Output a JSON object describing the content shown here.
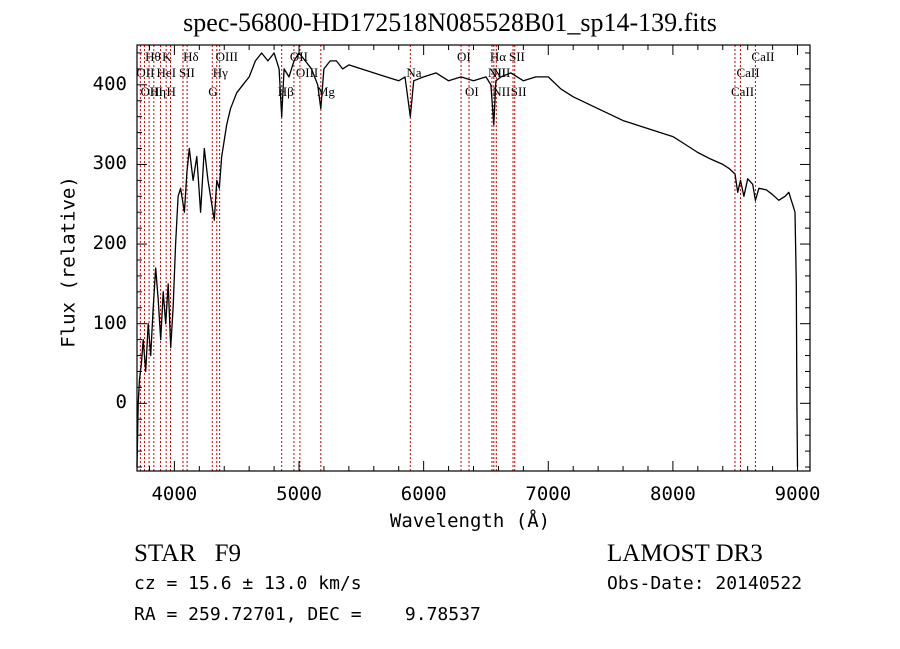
{
  "title": "spec-56800-HD172518N085528B01_sp14-139.fits",
  "object_class": "STAR",
  "subclass": "F9",
  "survey": "LAMOST DR3",
  "redshift_text": "cz = 15.6 ± 13.0 km/s",
  "obs_date_text": "Obs-Date: 20140522",
  "coords_text": "RA = 259.72701, DEC =    9.78537",
  "colors": {
    "axis": "#000000",
    "spectrum": "#000000",
    "line_markers": "#cc0000"
  },
  "chart_data": {
    "type": "line",
    "xlabel": "Wavelength (Å)",
    "ylabel": "Flux (relative)",
    "xlim": [
      3700,
      9100
    ],
    "ylim": [
      -85,
      450
    ],
    "xticks": [
      4000,
      5000,
      6000,
      7000,
      8000,
      9000
    ],
    "yticks": [
      0,
      100,
      200,
      300,
      400
    ],
    "grid": false,
    "legend": "none",
    "series": [
      {
        "x": [
          3700,
          3710,
          3720,
          3735,
          3750,
          3770,
          3790,
          3810,
          3830,
          3850,
          3870,
          3890,
          3910,
          3930,
          3950,
          3970,
          3990,
          4010,
          4030,
          4050,
          4080,
          4100,
          4120,
          4150,
          4180,
          4210,
          4240,
          4270,
          4300,
          4320,
          4340,
          4360,
          4380,
          4400,
          4420,
          4450,
          4500,
          4550,
          4600,
          4650,
          4700,
          4750,
          4800,
          4840,
          4861,
          4880,
          4920,
          4960,
          5000,
          5050,
          5100,
          5150,
          5175,
          5200,
          5250,
          5300,
          5350,
          5400,
          5500,
          5600,
          5700,
          5800,
          5850,
          5893,
          5920,
          6000,
          6100,
          6200,
          6300,
          6400,
          6500,
          6540,
          6563,
          6580,
          6620,
          6700,
          6800,
          6900,
          7000,
          7100,
          7200,
          7400,
          7600,
          7800,
          8000,
          8100,
          8200,
          8300,
          8400,
          8450,
          8498,
          8520,
          8542,
          8570,
          8600,
          8640,
          8662,
          8690,
          8750,
          8800,
          8850,
          8900,
          8930,
          8950,
          8960,
          8980,
          8990,
          8995,
          9000
        ],
        "y": [
          -80,
          0,
          30,
          50,
          80,
          40,
          100,
          60,
          120,
          170,
          130,
          80,
          140,
          100,
          150,
          70,
          120,
          200,
          260,
          270,
          240,
          290,
          320,
          280,
          310,
          240,
          320,
          280,
          250,
          230,
          280,
          270,
          310,
          330,
          350,
          370,
          390,
          400,
          410,
          430,
          440,
          430,
          440,
          420,
          360,
          420,
          410,
          430,
          440,
          430,
          420,
          400,
          370,
          420,
          430,
          430,
          420,
          425,
          420,
          415,
          410,
          405,
          410,
          360,
          405,
          410,
          415,
          405,
          410,
          405,
          410,
          400,
          350,
          405,
          410,
          415,
          405,
          410,
          410,
          395,
          385,
          370,
          355,
          345,
          335,
          325,
          315,
          307,
          300,
          295,
          288,
          265,
          280,
          260,
          282,
          275,
          255,
          270,
          268,
          262,
          255,
          260,
          265,
          255,
          250,
          240,
          150,
          0,
          -80
        ]
      }
    ],
    "lines_top": [
      {
        "label": "Hθ",
        "x": 3797,
        "row": 1
      },
      {
        "label": "K",
        "x": 3934,
        "row": 1
      },
      {
        "label": "Hδ",
        "x": 4102,
        "row": 1
      },
      {
        "label": "OIII",
        "x": 4363,
        "row": 1
      },
      {
        "label": "OII",
        "x": 4959,
        "row": 1
      },
      {
        "label": "OI",
        "x": 6300,
        "row": 1
      },
      {
        "label": "Hα",
        "x": 6563,
        "row": 1
      },
      {
        "label": "SII",
        "x": 6717,
        "row": 1
      },
      {
        "label": "CaII",
        "x": 8662,
        "row": 1
      },
      {
        "label": "OII",
        "x": 3727,
        "row": 2
      },
      {
        "label": "HeI",
        "x": 3889,
        "row": 2
      },
      {
        "label": "SII",
        "x": 4069,
        "row": 2
      },
      {
        "label": "Hγ",
        "x": 4340,
        "row": 2
      },
      {
        "label": "OIII",
        "x": 5007,
        "row": 2
      },
      {
        "label": "Na",
        "x": 5893,
        "row": 2
      },
      {
        "label": "NII",
        "x": 6548,
        "row": 2
      },
      {
        "label": "NII",
        "x": 6583,
        "row": 2
      },
      {
        "label": "CaII",
        "x": 8542,
        "row": 2
      },
      {
        "label": "OIII",
        "x": 3760,
        "row": 3
      },
      {
        "label": "Hη",
        "x": 3835,
        "row": 3
      },
      {
        "label": "H",
        "x": 3969,
        "row": 3
      },
      {
        "label": "G",
        "x": 4304,
        "row": 3
      },
      {
        "label": "Hβ",
        "x": 4861,
        "row": 3
      },
      {
        "label": "Mg",
        "x": 5175,
        "row": 3
      },
      {
        "label": "OI",
        "x": 6364,
        "row": 3
      },
      {
        "label": "NII",
        "x": 6583,
        "row": 3
      },
      {
        "label": "SII",
        "x": 6731,
        "row": 3
      },
      {
        "label": "CaII",
        "x": 8498,
        "row": 3
      }
    ]
  }
}
